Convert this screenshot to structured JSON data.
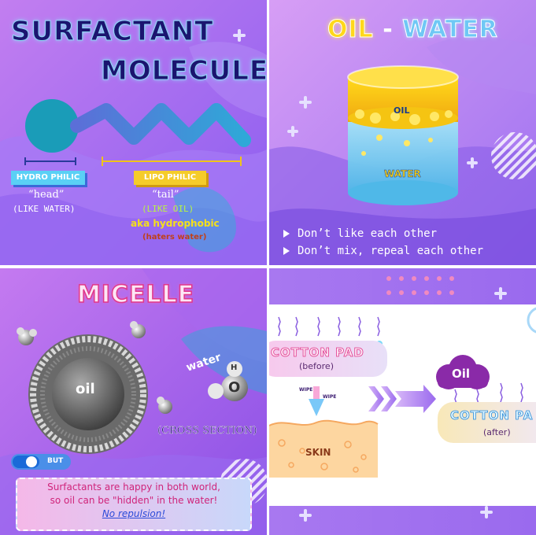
{
  "panel1": {
    "title_line1": "SURFACTANT",
    "title_line2": "MOLECULE",
    "hydrophilic_label": "HYDRO PHILIC",
    "head_text": "“head”",
    "like_water": "(LIKE WATER)",
    "lipophilic_label": "LIPO PHILIC",
    "tail_text": "“tail”",
    "like_oil": "(LIKE OIL)",
    "aka": "aka hydrophobic",
    "haters": "(haters water)"
  },
  "panel2": {
    "title_oil": "OIL",
    "title_dash": "-",
    "title_water": "WATER",
    "oil_label": "OIL",
    "water_label": "WATER",
    "bullet1": "Don’t like each other",
    "bullet2": "Don’t mix, repeal each other"
  },
  "panel3": {
    "title": "MICELLE",
    "oil_label": "oil",
    "water_label": "water",
    "h_label": "H",
    "o_label": "O",
    "cross_section": "(CROSS SECTION)",
    "toggle_label": "BUT",
    "message_line1": "Surfactants are happy in both world,",
    "message_line2": "so oil can be \"hidden\" in the water!",
    "message_line3": "No repulsion!"
  },
  "panel4": {
    "cotton_pad_before": "COTTON PAD",
    "before": "(before)",
    "wipe1": "WIPE",
    "wipe2": "WIPE",
    "skin": "SKIN",
    "oil_label": "Oil",
    "cotton_pad_after": "COTTON PA",
    "after": "(after)"
  },
  "colors": {
    "purple_bg": "#b07cf0",
    "dark_purple": "#8a4fe0",
    "teal": "#1e9bb8",
    "pink": "#f06bc0",
    "yellow": "#f5d21a",
    "light_blue": "#8fd8f5"
  }
}
